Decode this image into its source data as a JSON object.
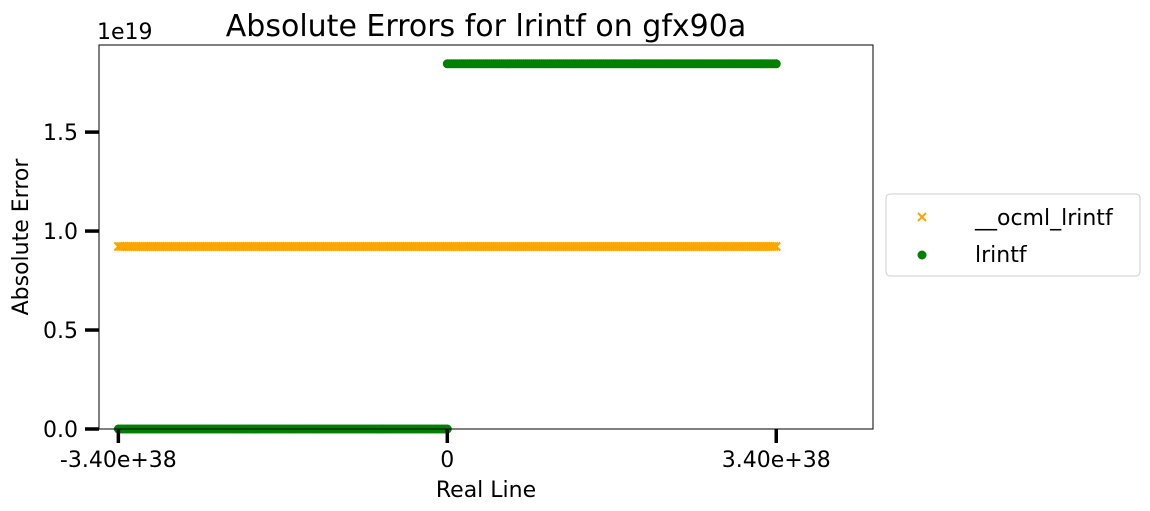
{
  "chart_data": {
    "type": "scatter",
    "title": "Absolute Errors for lrintf on gfx90a",
    "xlabel": "Real Line",
    "ylabel": "Absolute Error",
    "y_offset_text": "1e19",
    "y_scale": 1e+19,
    "xlim": [
      -3.6e+38,
      4.4e+38
    ],
    "ylim": [
      0,
      1.94e+19
    ],
    "x_ticks": [
      {
        "value": -3.4e+38,
        "label": "-3.40e+38"
      },
      {
        "value": 0,
        "label": "0"
      },
      {
        "value": 3.4e+38,
        "label": "3.40e+38"
      }
    ],
    "y_ticks": [
      {
        "value": 0,
        "label": "0.0"
      },
      {
        "value": 5e+18,
        "label": "0.5"
      },
      {
        "value": 1e+19,
        "label": "1.0"
      },
      {
        "value": 1.5e+19,
        "label": "1.5"
      }
    ],
    "grid": false,
    "legend_position": "outside-right",
    "series": [
      {
        "name": "__ocml_lrintf",
        "marker": "x",
        "color": "#ffa500",
        "segments": [
          {
            "x_start": -3.4e+38,
            "x_end": 3.4e+38,
            "y": 9.22e+18
          }
        ]
      },
      {
        "name": "lrintf",
        "marker": "o",
        "color": "#008000",
        "segments": [
          {
            "x_start": -3.4e+38,
            "x_end": 0,
            "y": 0
          },
          {
            "x_start": 0,
            "x_end": 3.4e+38,
            "y": 1.845e+19
          }
        ]
      }
    ]
  }
}
